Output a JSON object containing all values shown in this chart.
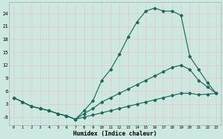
{
  "xlabel": "Humidex (Indice chaleur)",
  "bg_color": "#cce8e0",
  "line_color": "#1a6b5a",
  "grid_color": "#e8c8c8",
  "xlim": [
    -0.5,
    23.5
  ],
  "ylim": [
    -1.8,
    26.5
  ],
  "xticks": [
    0,
    1,
    2,
    3,
    4,
    5,
    6,
    7,
    8,
    9,
    10,
    11,
    12,
    13,
    14,
    15,
    16,
    17,
    18,
    19,
    20,
    21,
    22,
    23
  ],
  "yticks": [
    0,
    3,
    6,
    9,
    12,
    15,
    18,
    21,
    24
  ],
  "ytick_labels": [
    "-0",
    "3",
    "6",
    "9",
    "12",
    "15",
    "18",
    "21",
    "24"
  ],
  "line1_x": [
    0,
    1,
    2,
    3,
    4,
    5,
    6,
    7,
    8,
    9,
    10,
    11,
    12,
    13,
    14,
    15,
    16,
    17,
    18,
    19,
    20,
    21,
    22,
    23
  ],
  "line1_y": [
    4.5,
    3.5,
    2.5,
    2.0,
    1.5,
    0.8,
    0.3,
    -0.5,
    1.5,
    3.8,
    8.5,
    11.0,
    14.5,
    18.5,
    22.0,
    24.5,
    25.2,
    24.5,
    24.5,
    23.5,
    14.0,
    11.0,
    8.0,
    5.5
  ],
  "line2_x": [
    0,
    1,
    2,
    3,
    4,
    5,
    6,
    7,
    8,
    9,
    10,
    11,
    12,
    13,
    14,
    15,
    16,
    17,
    18,
    19,
    20,
    21,
    22,
    23
  ],
  "line2_y": [
    4.5,
    3.5,
    2.5,
    2.0,
    1.5,
    0.8,
    0.3,
    -0.5,
    0.8,
    2.0,
    3.5,
    4.5,
    5.5,
    6.5,
    7.5,
    8.5,
    9.5,
    10.5,
    11.5,
    12.0,
    11.0,
    8.5,
    7.0,
    5.5
  ],
  "line3_x": [
    0,
    1,
    2,
    3,
    4,
    5,
    6,
    7,
    8,
    9,
    10,
    11,
    12,
    13,
    14,
    15,
    16,
    17,
    18,
    19,
    20,
    21,
    22,
    23
  ],
  "line3_y": [
    4.5,
    3.5,
    2.5,
    2.0,
    1.5,
    0.8,
    0.3,
    -0.5,
    0.0,
    0.5,
    1.0,
    1.5,
    2.0,
    2.5,
    3.0,
    3.5,
    4.0,
    4.5,
    5.0,
    5.5,
    5.5,
    5.2,
    5.3,
    5.5
  ]
}
